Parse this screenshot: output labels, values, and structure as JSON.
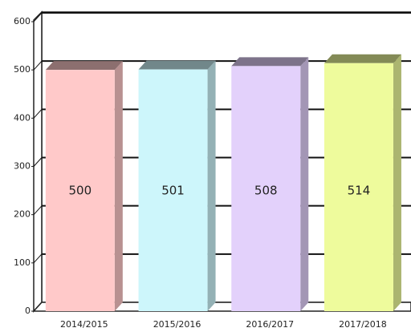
{
  "chart_data": {
    "type": "bar3d",
    "categories": [
      "2014/2015",
      "2015/2016",
      "2016/2017",
      "2017/2018"
    ],
    "values": [
      500,
      501,
      508,
      514
    ],
    "colors": [
      "#ffc9c9",
      "#cdf6fb",
      "#e3d1fb",
      "#eefb9c"
    ],
    "ylim": [
      0,
      600
    ],
    "yticks": [
      0,
      100,
      200,
      300,
      400,
      500,
      600
    ],
    "grid": true
  }
}
